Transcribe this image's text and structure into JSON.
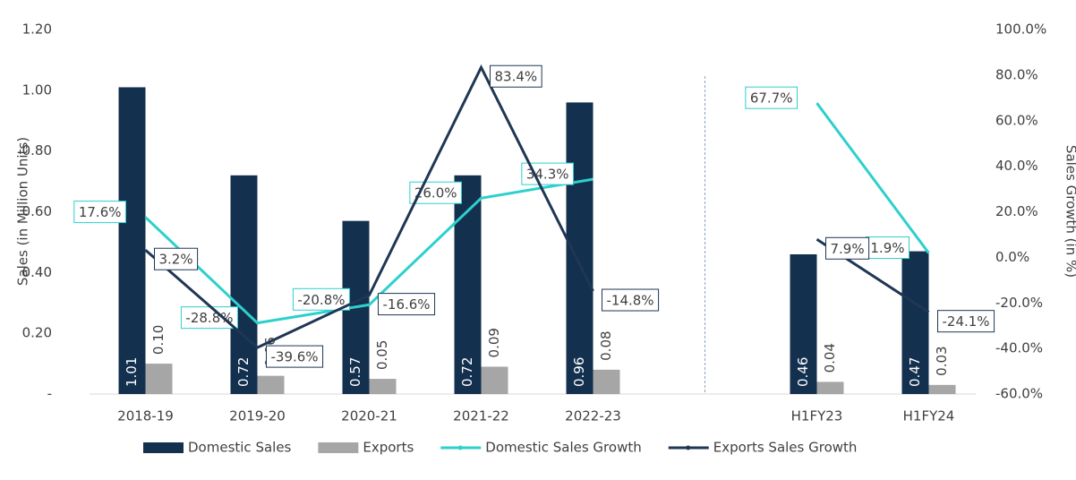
{
  "chart_data": {
    "type": "bar",
    "categories": [
      "2018-19",
      "2019-20",
      "2020-21",
      "2021-22",
      "2022-23",
      null,
      "H1FY23",
      "H1FY24"
    ],
    "y_label": "Sales (in Million Units)",
    "y2_label": "Sales Growth (in %)",
    "ylim": [
      0,
      1.2
    ],
    "yticks": [
      {
        "value": 0,
        "label": "-"
      },
      {
        "value": 0.2,
        "label": "0.20"
      },
      {
        "value": 0.4,
        "label": "0.40"
      },
      {
        "value": 0.6,
        "label": "0.60"
      },
      {
        "value": 0.8,
        "label": "0.80"
      },
      {
        "value": 1.0,
        "label": "1.00"
      },
      {
        "value": 1.2,
        "label": "1.20"
      }
    ],
    "y2lim": [
      -60,
      100
    ],
    "y2ticks": [
      {
        "value": -60,
        "label": "-60.0%"
      },
      {
        "value": -40,
        "label": "-40.0%"
      },
      {
        "value": -20,
        "label": "-20.0%"
      },
      {
        "value": 0,
        "label": "0.0%"
      },
      {
        "value": 20,
        "label": "20.0%"
      },
      {
        "value": 40,
        "label": "40.0%"
      },
      {
        "value": 60,
        "label": "60.0%"
      },
      {
        "value": 80,
        "label": "80.0%"
      },
      {
        "value": 100,
        "label": "100.0%"
      }
    ],
    "series": [
      {
        "name": "Domestic Sales",
        "type": "bar",
        "color": "#14304f",
        "values": [
          1.01,
          0.72,
          0.57,
          0.72,
          0.96,
          null,
          0.46,
          0.47
        ],
        "value_labels": [
          "1.01",
          "0.72",
          "0.57",
          "0.72",
          "0.96",
          null,
          "0.46",
          "0.47"
        ]
      },
      {
        "name": "Exports",
        "type": "bar",
        "color": "#a6a6a6",
        "values": [
          0.1,
          0.06,
          0.05,
          0.09,
          0.08,
          null,
          0.04,
          0.03
        ],
        "value_labels": [
          "0.10",
          "0.06",
          "0.05",
          "0.09",
          "0.08",
          null,
          "0.04",
          "0.03"
        ]
      },
      {
        "name": "Domestic Sales Growth",
        "type": "line",
        "axis": "y2",
        "color": "#2dd0cc",
        "values": [
          17.6,
          -28.8,
          -20.8,
          26.0,
          34.3,
          null,
          67.7,
          1.9
        ],
        "value_labels": [
          "17.6%",
          "-28.8%",
          "-20.8%",
          "26.0%",
          "34.3%",
          null,
          "67.7%",
          "1.9%"
        ]
      },
      {
        "name": "Exports Sales Growth",
        "type": "line",
        "axis": "y2",
        "color": "#1f3654",
        "values": [
          3.2,
          -39.6,
          -16.6,
          83.4,
          -14.8,
          null,
          7.9,
          -24.1
        ],
        "value_labels": [
          "3.2%",
          "-39.6%",
          "-16.6%",
          "83.4%",
          "-14.8%",
          null,
          "7.9%",
          "-24.1%"
        ]
      }
    ]
  }
}
